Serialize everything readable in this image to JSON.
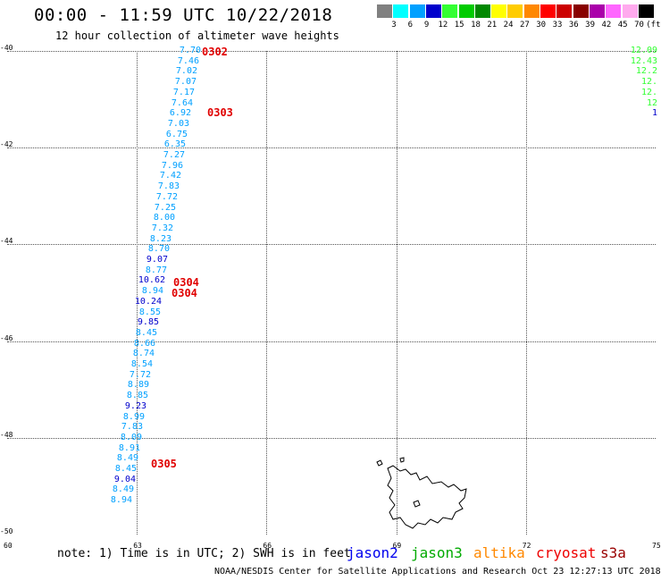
{
  "title": "00:00 - 11:59 UTC 10/22/2018",
  "subtitle": "12 hour collection of altimeter wave heights",
  "legend": {
    "unit": "(ft)",
    "swatches": [
      {
        "color": "#808080",
        "label": "3"
      },
      {
        "color": "#00ffff",
        "label": "6"
      },
      {
        "color": "#00a0ff",
        "label": "9"
      },
      {
        "color": "#0000cc",
        "label": "12"
      },
      {
        "color": "#33ff33",
        "label": "15"
      },
      {
        "color": "#00cc00",
        "label": "18"
      },
      {
        "color": "#008800",
        "label": "21"
      },
      {
        "color": "#ffff00",
        "label": "24"
      },
      {
        "color": "#ffcc00",
        "label": "27"
      },
      {
        "color": "#ff8800",
        "label": "30"
      },
      {
        "color": "#ff0000",
        "label": "33"
      },
      {
        "color": "#cc0000",
        "label": "36"
      },
      {
        "color": "#880000",
        "label": "39"
      },
      {
        "color": "#aa00aa",
        "label": "42"
      },
      {
        "color": "#ff66ff",
        "label": "45"
      },
      {
        "color": "#ffaaee",
        "label": "70"
      },
      {
        "color": "#000000",
        "label": ""
      }
    ]
  },
  "axes": {
    "y_labels": [
      "-40",
      "-42",
      "-44",
      "-46",
      "-48",
      "-50"
    ],
    "x_labels": [
      "60",
      "63",
      "66",
      "69",
      "72",
      "75"
    ]
  },
  "wave_heights": [
    {
      "v": "7.70",
      "c": "#00a0ff"
    },
    {
      "v": "7.46",
      "c": "#00a0ff"
    },
    {
      "v": "7.02",
      "c": "#00a0ff"
    },
    {
      "v": "7.07",
      "c": "#00a0ff"
    },
    {
      "v": "7.17",
      "c": "#00a0ff"
    },
    {
      "v": "7.64",
      "c": "#00a0ff"
    },
    {
      "v": "6.92",
      "c": "#00a0ff"
    },
    {
      "v": "7.03",
      "c": "#00a0ff"
    },
    {
      "v": "6.75",
      "c": "#00a0ff"
    },
    {
      "v": "6.35",
      "c": "#00a0ff"
    },
    {
      "v": "7.27",
      "c": "#00a0ff"
    },
    {
      "v": "7.96",
      "c": "#00a0ff"
    },
    {
      "v": "7.42",
      "c": "#00a0ff"
    },
    {
      "v": "7.83",
      "c": "#00a0ff"
    },
    {
      "v": "7.72",
      "c": "#00a0ff"
    },
    {
      "v": "7.25",
      "c": "#00a0ff"
    },
    {
      "v": "8.00",
      "c": "#00a0ff"
    },
    {
      "v": "7.32",
      "c": "#00a0ff"
    },
    {
      "v": "8.23",
      "c": "#00a0ff"
    },
    {
      "v": "8.70",
      "c": "#00a0ff"
    },
    {
      "v": "9.07",
      "c": "#0000cc"
    },
    {
      "v": "8.77",
      "c": "#00a0ff"
    },
    {
      "v": "10.62",
      "c": "#0000cc"
    },
    {
      "v": "8.94",
      "c": "#00a0ff"
    },
    {
      "v": "10.24",
      "c": "#0000cc"
    },
    {
      "v": "8.55",
      "c": "#00a0ff"
    },
    {
      "v": "9.85",
      "c": "#0000cc"
    },
    {
      "v": "8.45",
      "c": "#00a0ff"
    },
    {
      "v": "8.66",
      "c": "#00a0ff"
    },
    {
      "v": "8.74",
      "c": "#00a0ff"
    },
    {
      "v": "8.54",
      "c": "#00a0ff"
    },
    {
      "v": "7.72",
      "c": "#00a0ff"
    },
    {
      "v": "8.89",
      "c": "#00a0ff"
    },
    {
      "v": "8.85",
      "c": "#00a0ff"
    },
    {
      "v": "9.23",
      "c": "#0000cc"
    },
    {
      "v": "8.99",
      "c": "#00a0ff"
    },
    {
      "v": "7.83",
      "c": "#00a0ff"
    },
    {
      "v": "8.09",
      "c": "#00a0ff"
    },
    {
      "v": "8.91",
      "c": "#00a0ff"
    },
    {
      "v": "8.49",
      "c": "#00a0ff"
    },
    {
      "v": "8.45",
      "c": "#00a0ff"
    },
    {
      "v": "9.04",
      "c": "#0000cc"
    },
    {
      "v": "8.49",
      "c": "#00a0ff"
    },
    {
      "v": "8.94",
      "c": "#00a0ff"
    }
  ],
  "right_values": [
    {
      "v": "12.09",
      "c": "#33ff33"
    },
    {
      "v": "12.43",
      "c": "#33ff33"
    },
    {
      "v": "12.2",
      "c": "#33ff33"
    },
    {
      "v": "12.",
      "c": "#33ff33"
    },
    {
      "v": "12.",
      "c": "#33ff33"
    },
    {
      "v": "12",
      "c": "#33ff33"
    },
    {
      "v": "1",
      "c": "#0000cc"
    }
  ],
  "pass_times": [
    "0302",
    "0303",
    "0304",
    "0304",
    "0305"
  ],
  "note": "note: 1) Time is in UTC; 2) SWH is in feet",
  "satellites": [
    {
      "name": "jason2",
      "color": "#0000ee"
    },
    {
      "name": "jason3",
      "color": "#00aa00"
    },
    {
      "name": "altika",
      "color": "#ff8800"
    },
    {
      "name": "cryosat",
      "color": "#ee0000"
    },
    {
      "name": "s3a",
      "color": "#990000"
    }
  ],
  "footer": "NOAA/NESDIS Center for Satellite Applications and Research    Oct 23 12:27:13 UTC 2018"
}
